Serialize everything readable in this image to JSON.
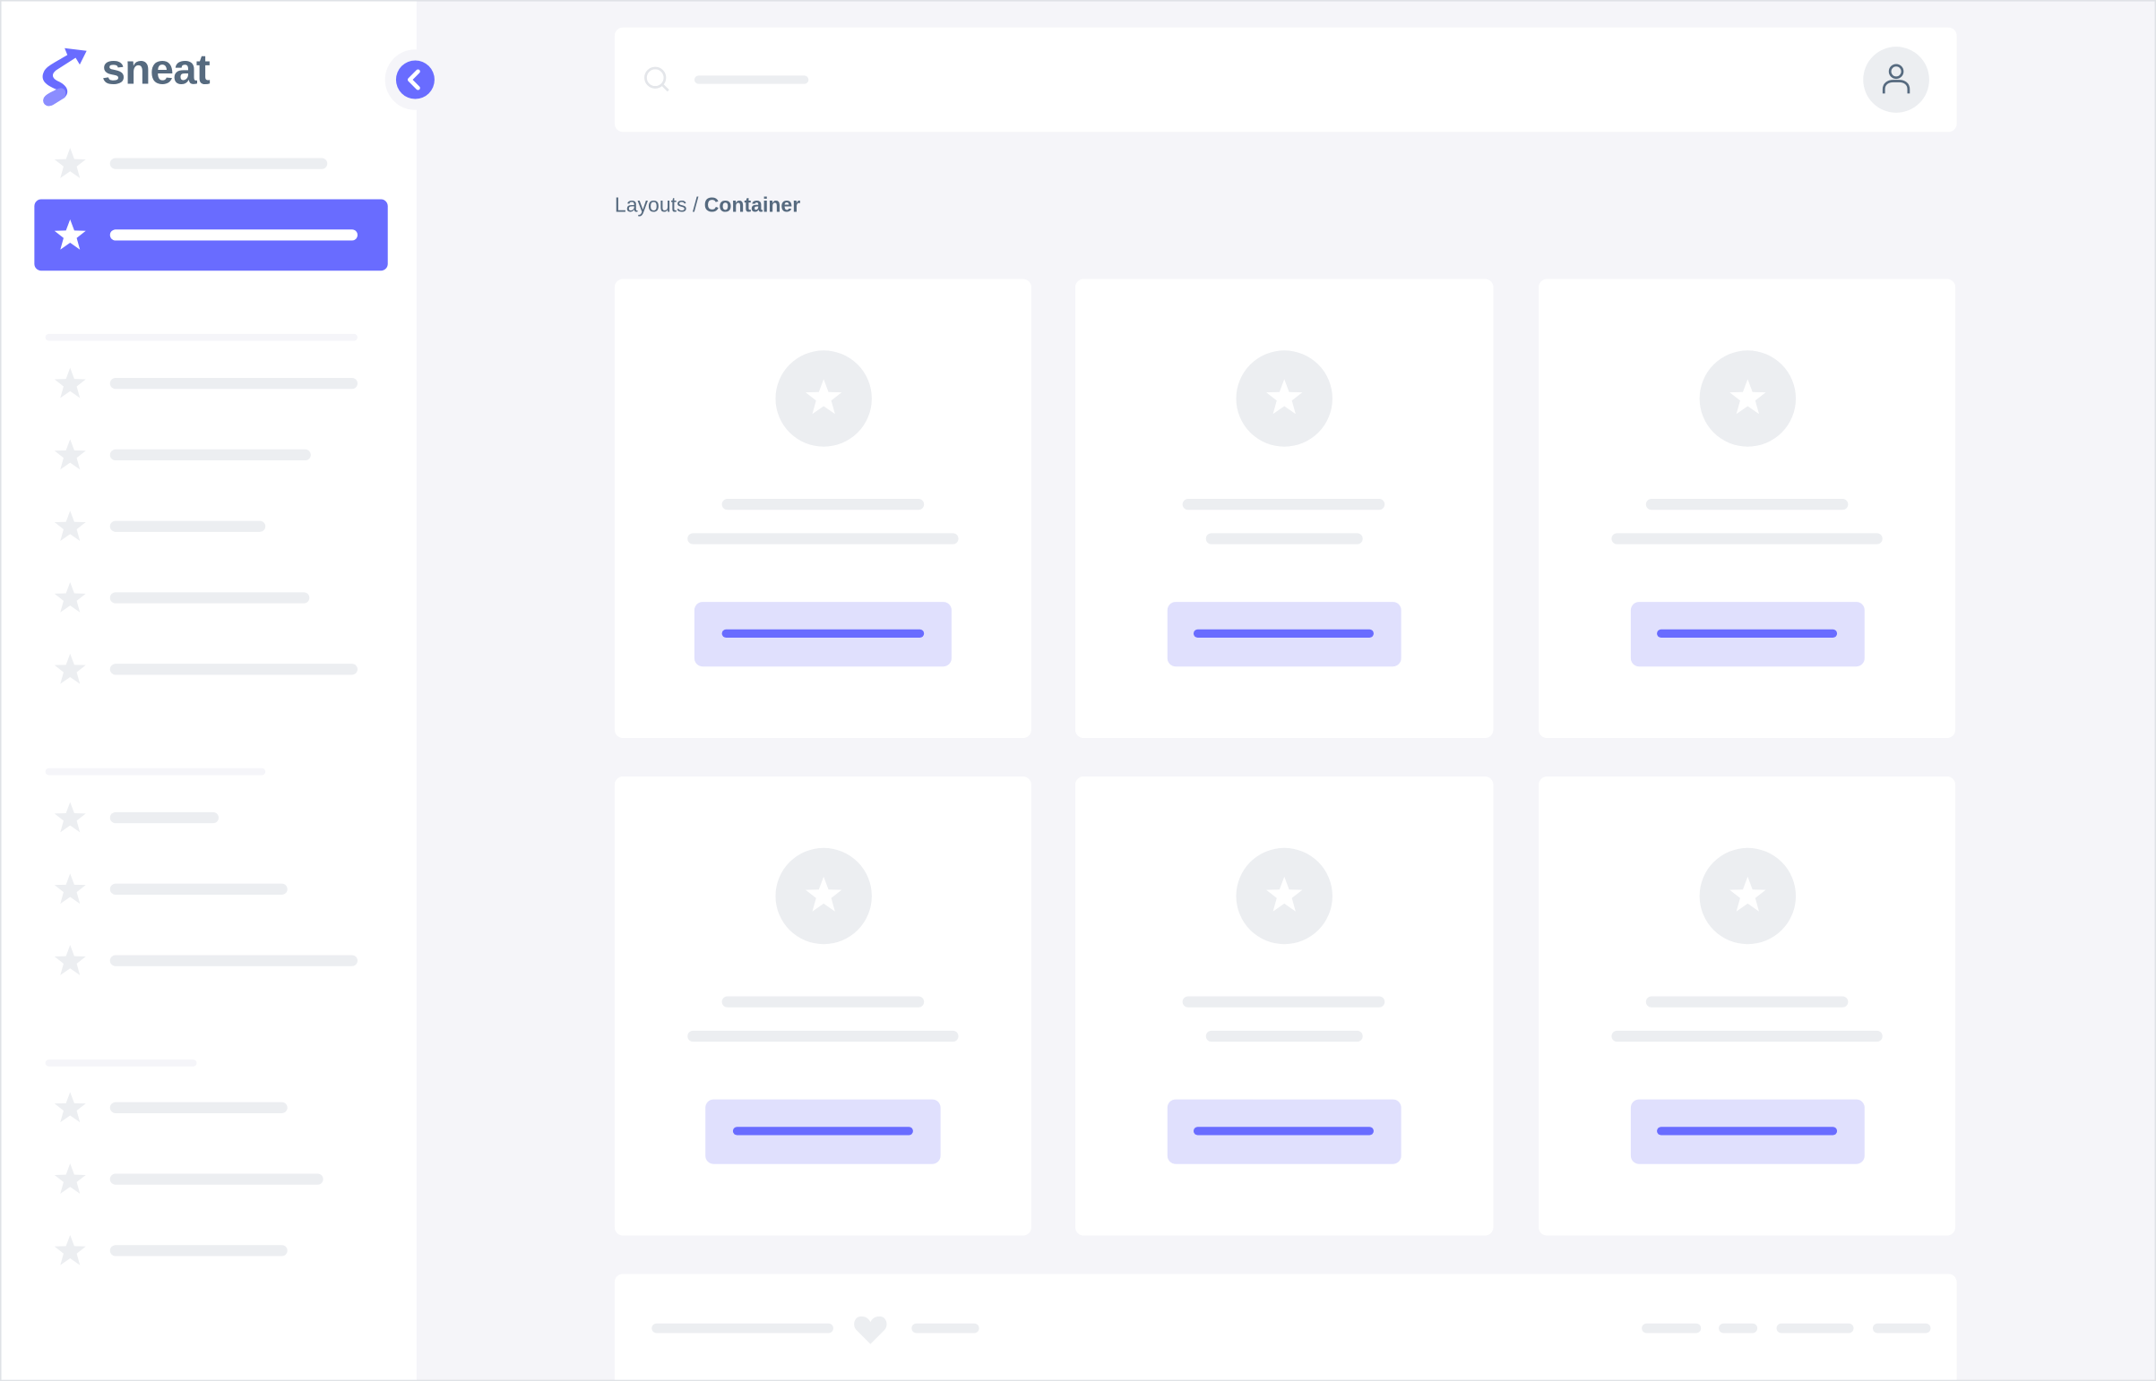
{
  "brand": {
    "name": "sneat",
    "accent_color": "#696cff",
    "text_color": "#566a7f"
  },
  "breadcrumb": {
    "parent": "Layouts",
    "separator": " / ",
    "current": "Container"
  },
  "icons": {
    "menu_item": "star-icon",
    "collapse": "chevron-left-icon",
    "search": "search-icon",
    "user": "user-icon",
    "footer": "heart-icon"
  }
}
